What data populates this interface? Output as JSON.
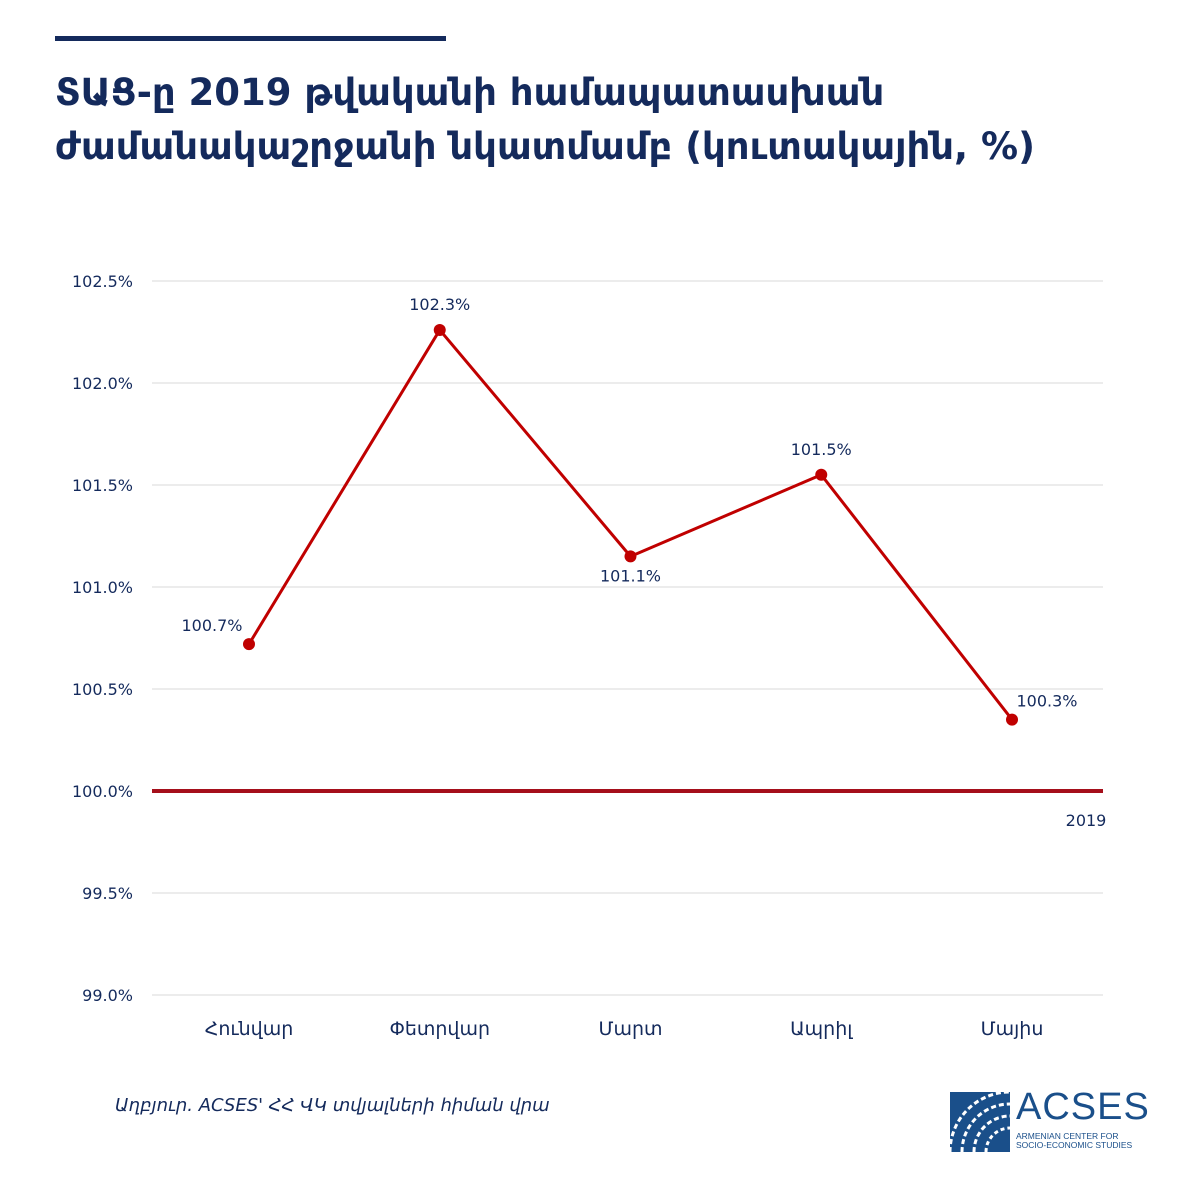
{
  "title_lines": [
    "ՏԱՑ-ը 2019 թվականի համապատասխան",
    "ժամանակաշրջանի նկատմամբ (կուտակային, %)"
  ],
  "colors": {
    "title": "#142a5c",
    "series": "#c00000",
    "baseline": "#a50f1b",
    "grid": "#d9d9d9",
    "labels": "#142a5c",
    "logo": "#1a4f8a"
  },
  "chart_data": {
    "type": "line",
    "categories": [
      "Հունվար",
      "Փետրվար",
      "Մարտ",
      "Ապրիլ",
      "Մայիս"
    ],
    "series": [
      {
        "values": [
          100.72,
          102.26,
          101.15,
          101.55,
          100.35
        ],
        "data_labels": [
          "100.7%",
          "102.3%",
          "101.1%",
          "101.5%",
          "100.3%"
        ]
      }
    ],
    "ylim": [
      99.0,
      102.5
    ],
    "y_ticks": [
      99.0,
      99.5,
      100.0,
      100.5,
      101.0,
      101.5,
      102.0,
      102.5
    ],
    "y_tick_labels": [
      "99.0%",
      "99.5%",
      "100.0%",
      "100.5%",
      "101.0%",
      "101.5%",
      "102.0%",
      "102.5%"
    ],
    "reference_line": {
      "value": 100.0,
      "label": "2019"
    },
    "grid": true,
    "legend": "none"
  },
  "footer": {
    "source": "Աղբյուր. ACSES' ՀՀ ՎԿ տվյալների հիման վրա"
  },
  "logo": {
    "wordmark": "ACSES",
    "subtitle_lines": [
      "ARMENIAN CENTER FOR",
      "SOCIO-ECONOMIC STUDIES"
    ]
  }
}
